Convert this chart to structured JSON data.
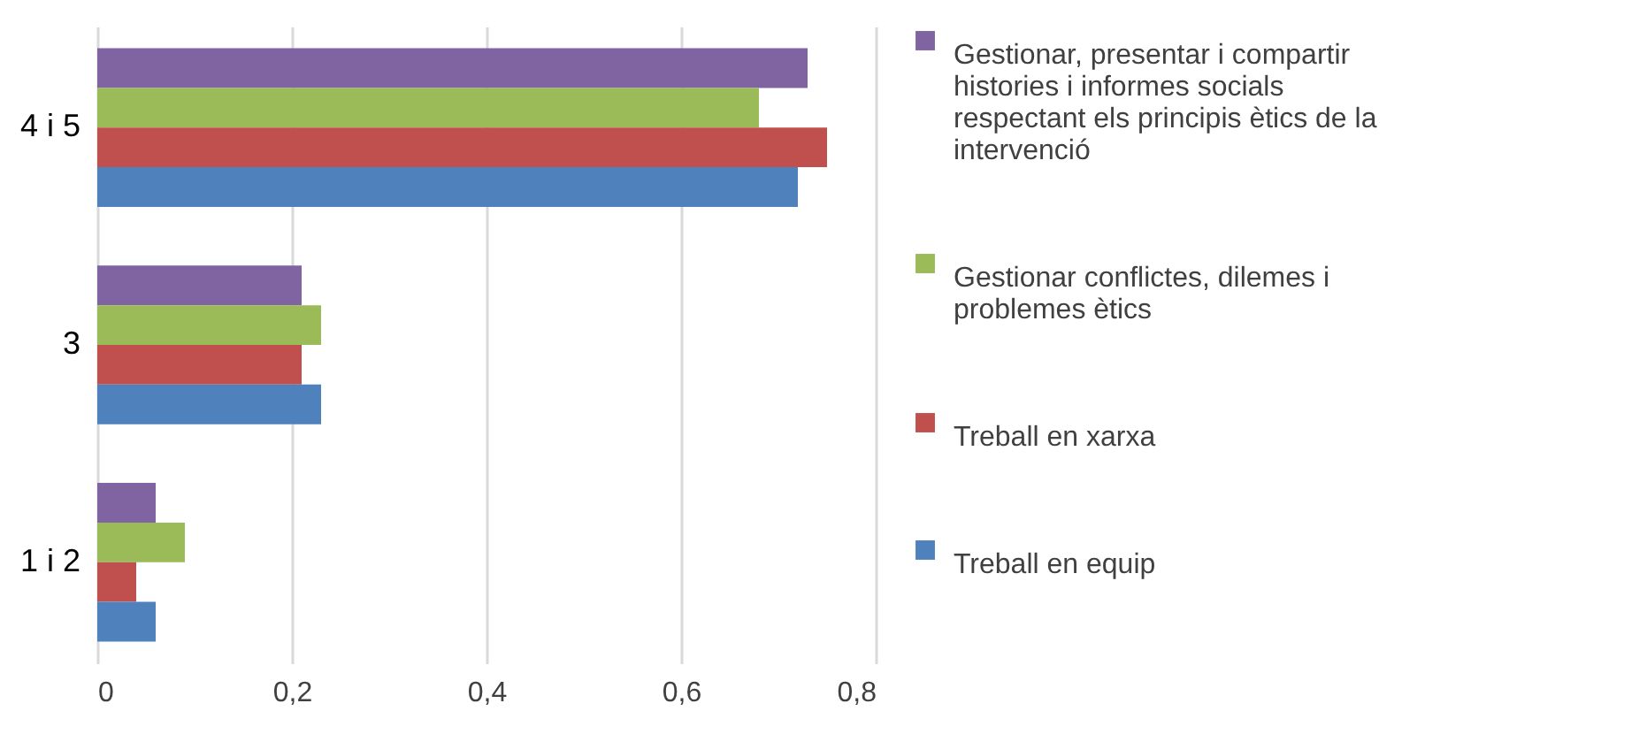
{
  "chart_data": {
    "type": "bar",
    "orientation": "horizontal",
    "categories": [
      "4 i 5",
      "3",
      "1 i 2"
    ],
    "series": [
      {
        "name": "Gestionar, presentar i compartir histories i informes socials respectant els principis ètics de la intervenció",
        "color": "#8064a2",
        "values": [
          0.73,
          0.21,
          0.06
        ]
      },
      {
        "name": "Gestionar conflictes, dilemes i problemes ètics",
        "color": "#9bbb59",
        "values": [
          0.68,
          0.23,
          0.09
        ]
      },
      {
        "name": "Treball en xarxa",
        "color": "#c0504d",
        "values": [
          0.75,
          0.21,
          0.04
        ]
      },
      {
        "name": "Treball en equip",
        "color": "#4f81bd",
        "values": [
          0.72,
          0.23,
          0.06
        ]
      }
    ],
    "xlim": [
      0,
      0.8
    ],
    "xticks": [
      0,
      {
        "value": 0.2,
        "label": "0,2"
      },
      {
        "value": 0.4,
        "label": "0,4"
      },
      {
        "value": 0.6,
        "label": "0,6"
      },
      {
        "value": 0.8,
        "label": "0,8"
      }
    ],
    "grid": "x",
    "legend": "right"
  }
}
